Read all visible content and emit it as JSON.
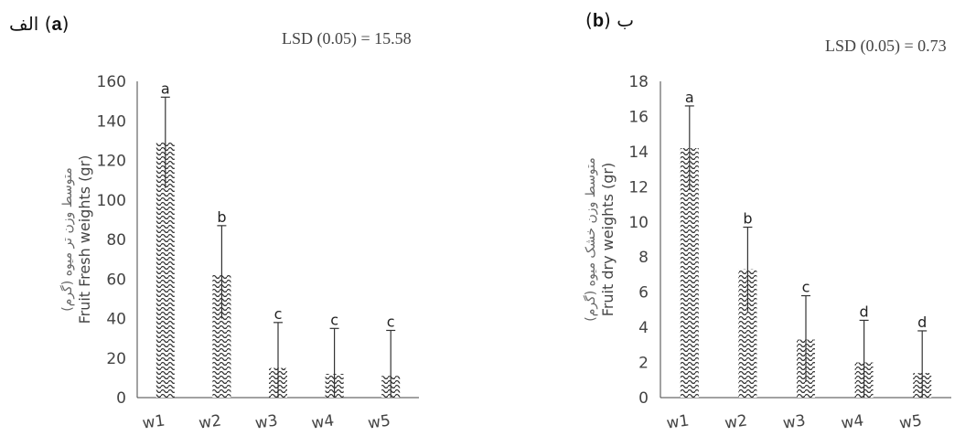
{
  "panels": [
    {
      "label_fa": "الف",
      "label_en": "a",
      "lsd": "LSD (0.05) = 15.58"
    },
    {
      "label_fa": "ب",
      "label_en": "b",
      "lsd": "LSD (0.05) = 0.73"
    }
  ],
  "chart_data": [
    {
      "type": "bar",
      "categories": [
        "w1",
        "w2",
        "w3",
        "w4",
        "w5"
      ],
      "values": [
        129,
        62,
        15,
        12,
        11
      ],
      "error_upper": [
        152,
        87,
        38,
        35,
        34
      ],
      "error_lower": [
        106,
        40,
        0,
        0,
        0
      ],
      "significance": [
        "a",
        "b",
        "c",
        "c",
        "c"
      ],
      "ylabel": "Fruit Fresh weights (gr)",
      "ylabel_fa": "متوسط وزن تر میوه (گرم)",
      "ylim": [
        0,
        160
      ],
      "yticks": [
        0,
        20,
        40,
        60,
        80,
        100,
        120,
        140,
        160
      ],
      "grid": false,
      "bar_color": "#333333"
    },
    {
      "type": "bar",
      "categories": [
        "w1",
        "w2",
        "w3",
        "w4",
        "w5"
      ],
      "values": [
        14.2,
        7.3,
        3.3,
        2.0,
        1.4
      ],
      "error_upper": [
        16.6,
        9.7,
        5.8,
        4.4,
        3.8
      ],
      "error_lower": [
        11.8,
        4.9,
        0.9,
        0,
        0
      ],
      "significance": [
        "a",
        "b",
        "c",
        "d",
        "d"
      ],
      "ylabel": "Fruit dry weights (gr)",
      "ylabel_fa": "متوسط وزن خشک میوه (گرم)",
      "ylim": [
        0,
        18
      ],
      "yticks": [
        0,
        2,
        4,
        6,
        8,
        10,
        12,
        14,
        16,
        18
      ],
      "grid": false,
      "bar_color": "#333333"
    }
  ]
}
